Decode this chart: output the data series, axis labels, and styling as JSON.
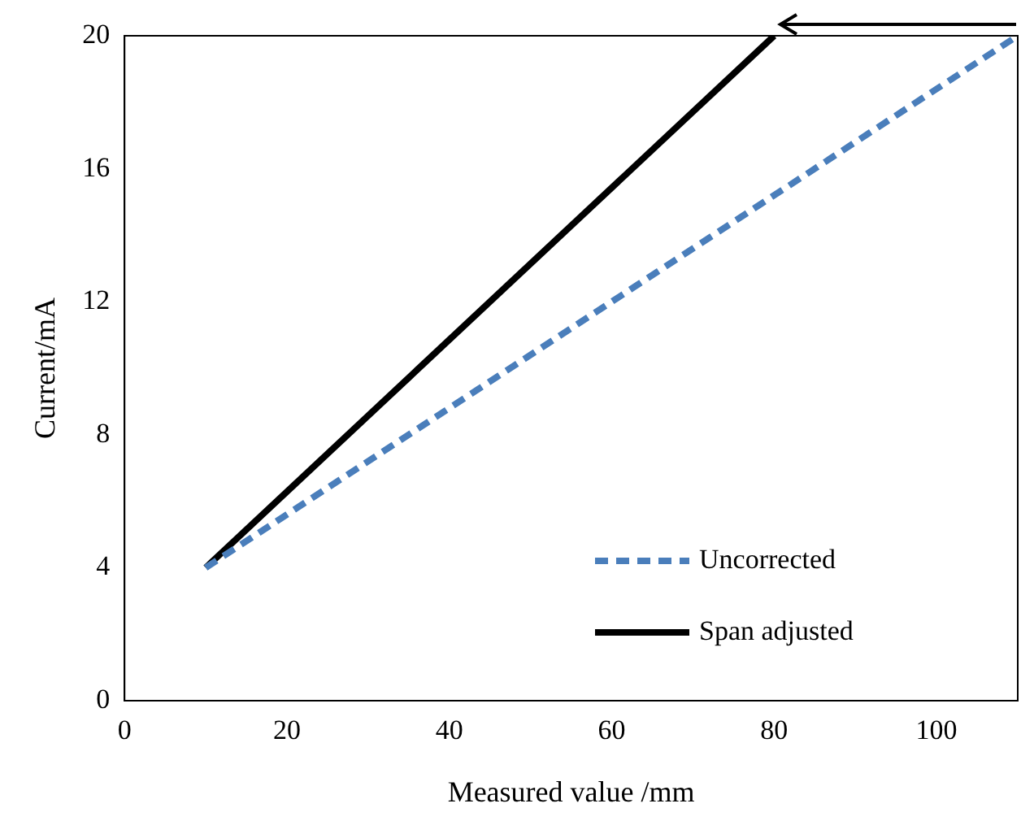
{
  "chart_data": {
    "type": "line",
    "xlabel": "Measured value /mm",
    "ylabel": "Current/mA",
    "xlim": [
      0,
      110
    ],
    "xticks": [
      0,
      20,
      40,
      60,
      80,
      100
    ],
    "ylim": [
      0,
      20
    ],
    "yticks": [
      0,
      4,
      8,
      12,
      16,
      20
    ],
    "grid": false,
    "legend": "bottom right",
    "marker": "none",
    "series": [
      {
        "name": "Uncorrected",
        "color": "#4a7ebb",
        "line_style": "dashed",
        "x": [
          10,
          110
        ],
        "values": [
          4,
          20
        ]
      },
      {
        "name": "Span adjusted",
        "color": "#000000",
        "line_style": "solid",
        "x": [
          10,
          80
        ],
        "values": [
          4,
          20
        ]
      }
    ]
  }
}
